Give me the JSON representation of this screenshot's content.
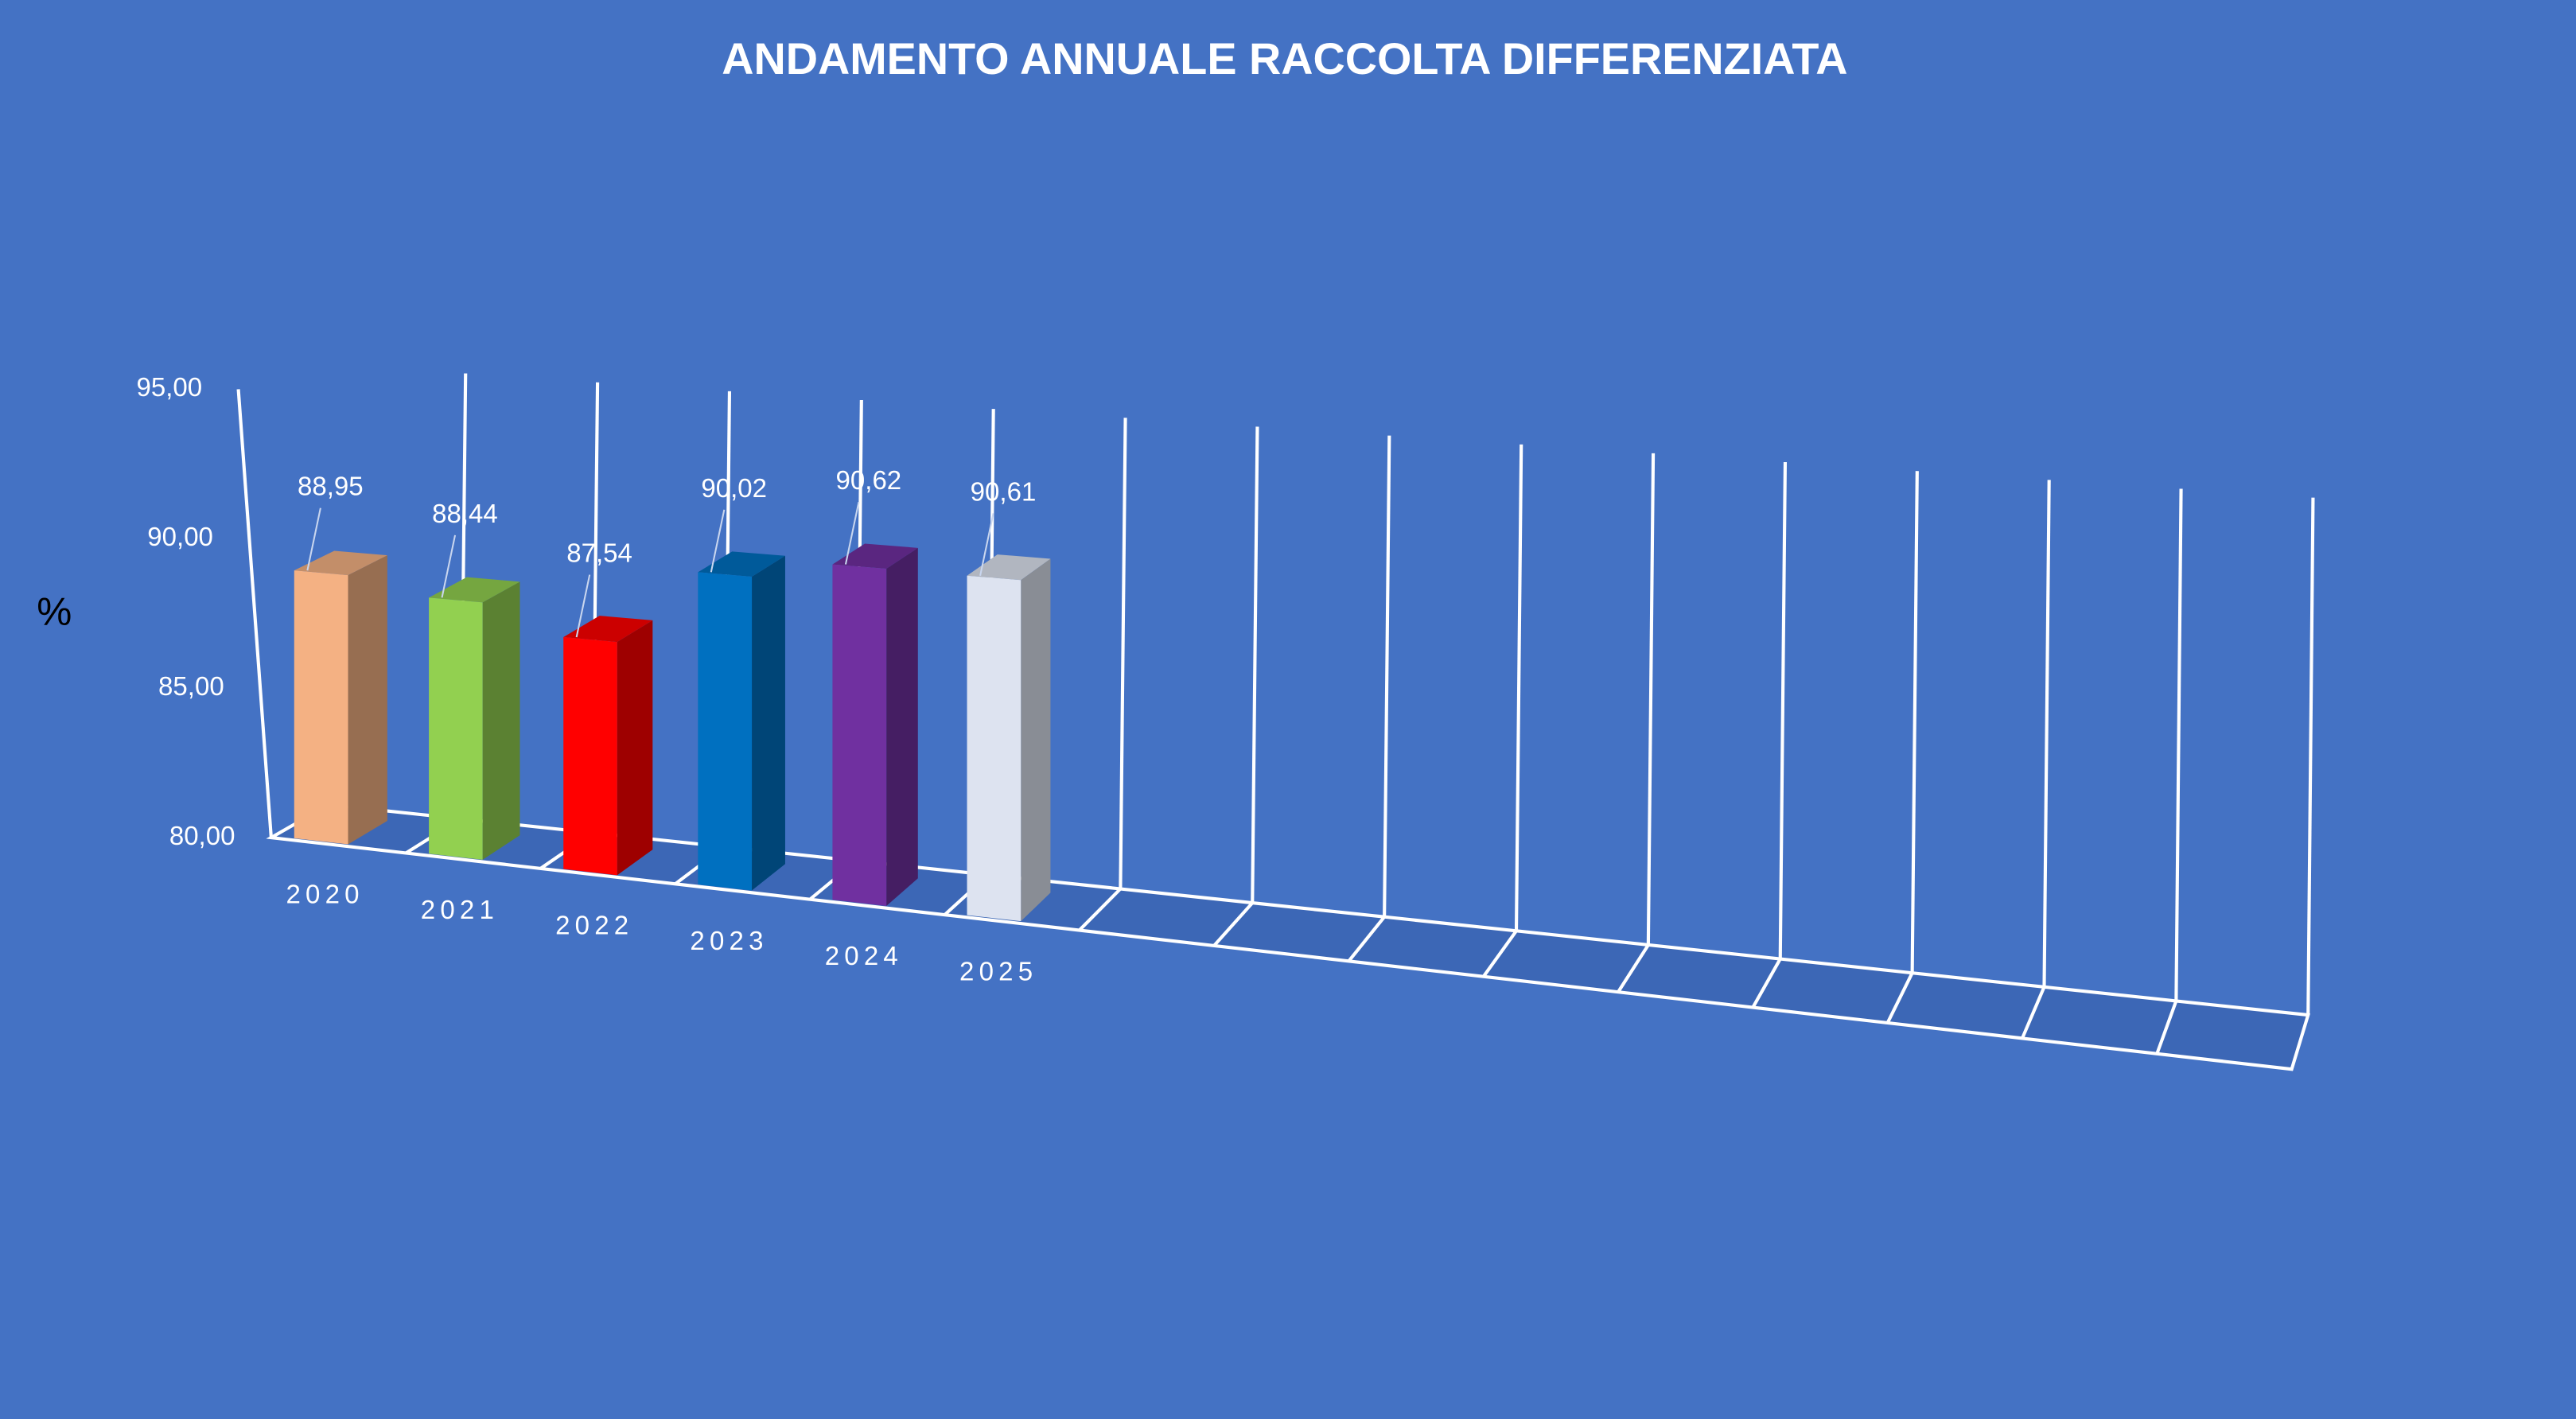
{
  "chart_data": {
    "type": "bar3d",
    "title": "ANDAMENTO ANNUALE RACCOLTA DIFFERENZIATA",
    "y_label": "%",
    "categories": [
      "2020",
      "2021",
      "2022",
      "2023",
      "2024",
      "2025",
      null,
      null,
      null,
      null,
      null,
      null,
      null,
      null,
      null
    ],
    "values": [
      88.95,
      88.44,
      87.54,
      90.02,
      90.62,
      90.61,
      null,
      null,
      null,
      null,
      null,
      null,
      null,
      null,
      null
    ],
    "value_labels": [
      "88,95",
      "88,44",
      "87,54",
      "90,02",
      "90,62",
      "90,61",
      null,
      null,
      null,
      null,
      null,
      null,
      null,
      null,
      null
    ],
    "colors": [
      "#f4b183",
      "#92d050",
      "#ff0000",
      "#0070c0",
      "#7030a0",
      "#dde3f0",
      null,
      null,
      null,
      null,
      null,
      null,
      null,
      null,
      null
    ],
    "ylim": [
      80,
      95
    ],
    "yticks": [
      {
        "value": 80,
        "label": "80,00"
      },
      {
        "value": 85,
        "label": "85,00"
      },
      {
        "value": 90,
        "label": "90,00"
      },
      {
        "value": 95,
        "label": "95,00"
      }
    ]
  }
}
